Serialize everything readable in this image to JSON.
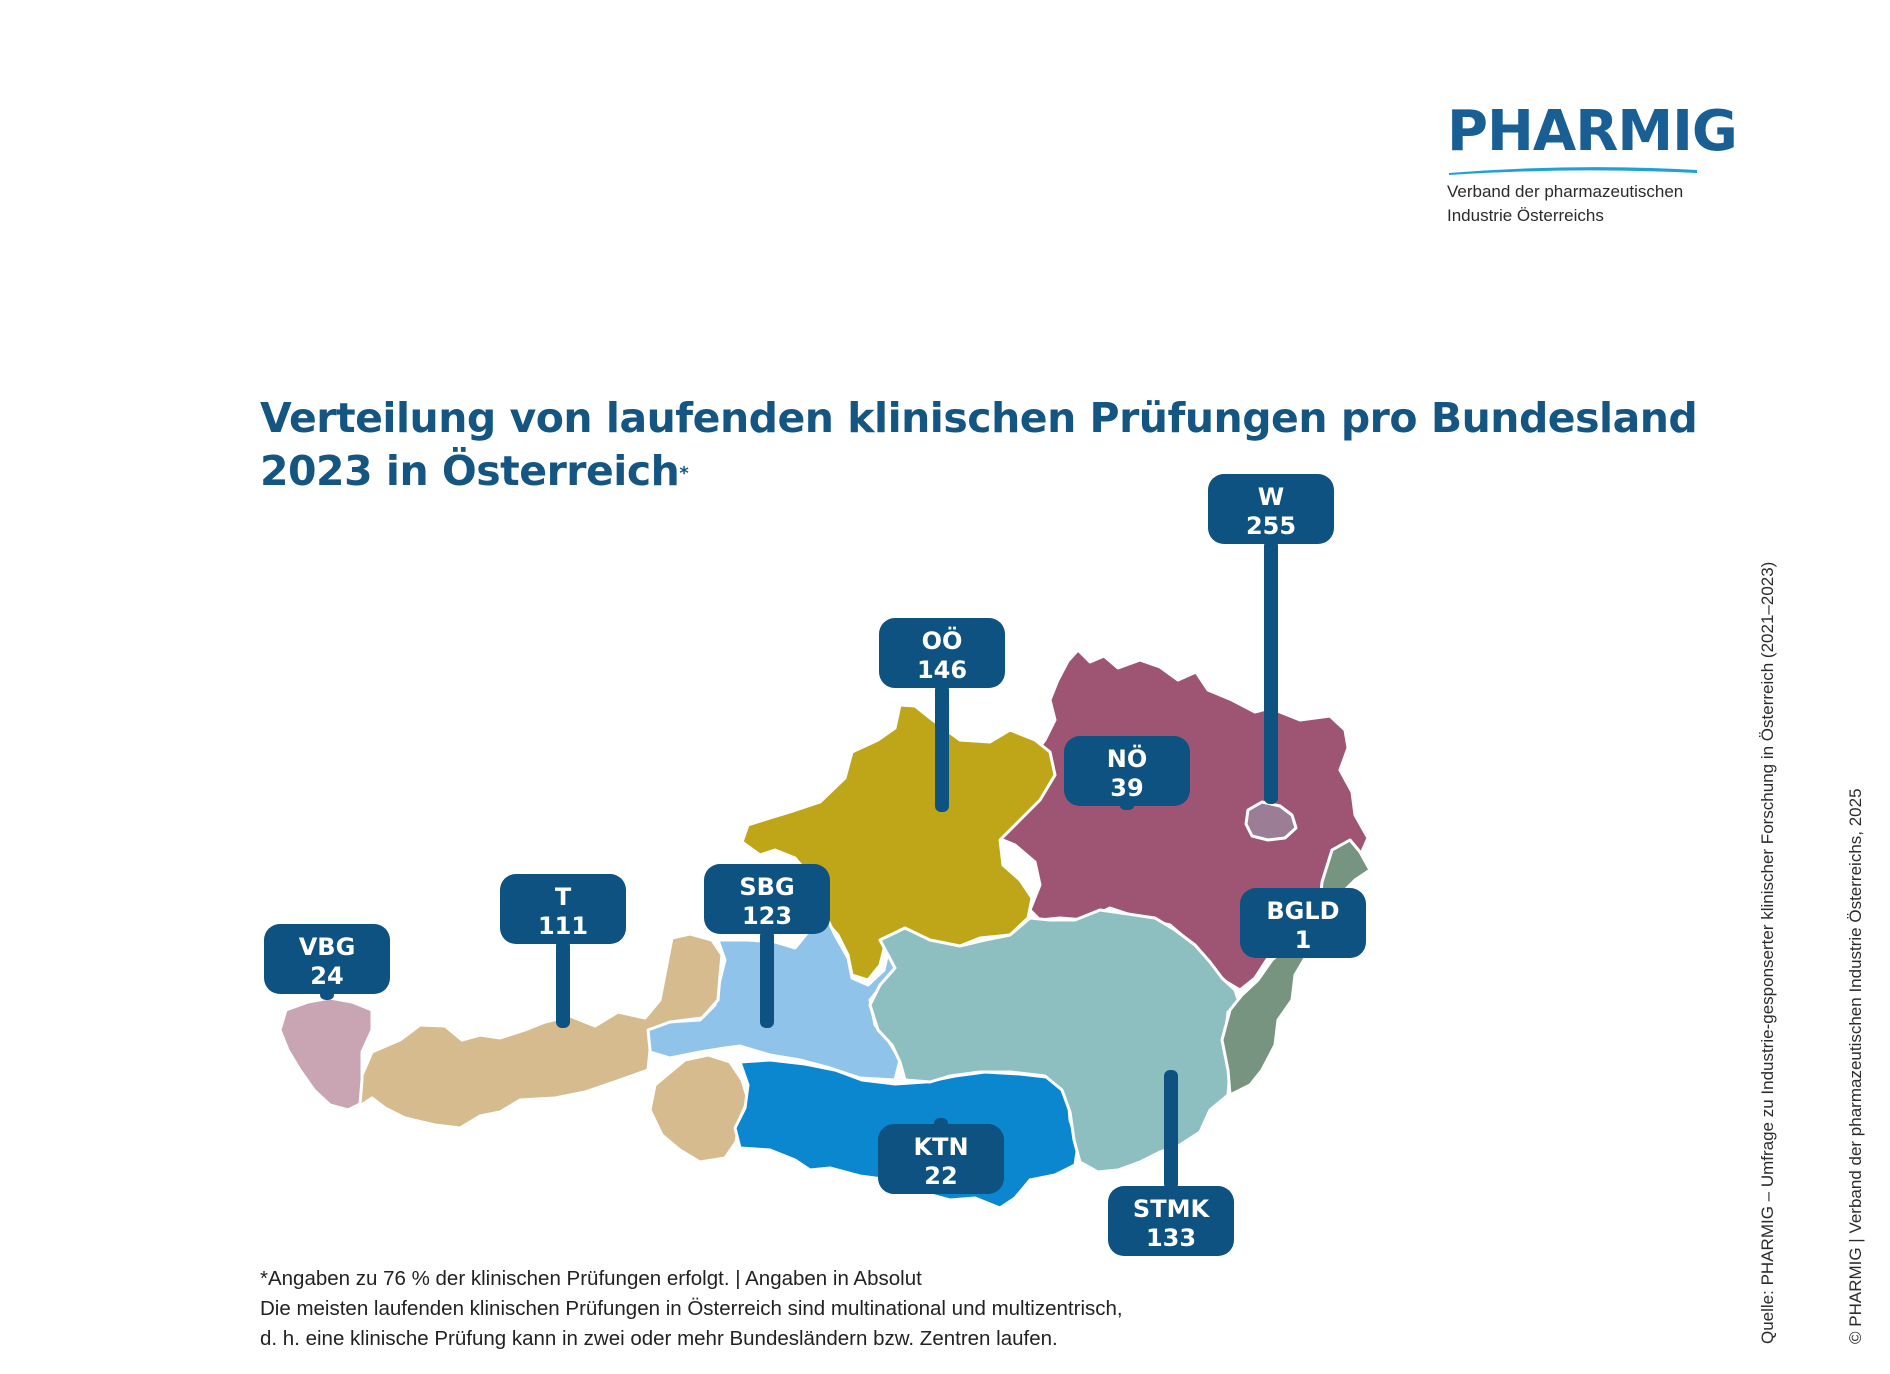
{
  "logo": {
    "wordmark": "PHARMIG",
    "subtitle_line1": "Verband der pharmazeutischen",
    "subtitle_line2": "Industrie Österreichs",
    "color": "#1a5f94"
  },
  "title": {
    "line1": "Verteilung von laufenden klinischen Prüfungen pro Bundesland",
    "line2": "2023 in Österreich",
    "marker": "*"
  },
  "map": {
    "regions": [
      {
        "key": "VBG",
        "value": "24",
        "color": "#c9a5b4"
      },
      {
        "key": "T",
        "value": "111",
        "color": "#d6bb8e"
      },
      {
        "key": "SBG",
        "value": "123",
        "color": "#8fc3ea"
      },
      {
        "key": "OÖ",
        "value": "146",
        "color": "#bea618"
      },
      {
        "key": "NÖ",
        "value": "39",
        "color": "#9d5573"
      },
      {
        "key": "W",
        "value": "255",
        "color": "#9b7e95"
      },
      {
        "key": "BGLD",
        "value": "1",
        "color": "#76947f"
      },
      {
        "key": "STMK",
        "value": "133",
        "color": "#8ebfc0"
      },
      {
        "key": "KTN",
        "value": "22",
        "color": "#0a87cf"
      }
    ],
    "label_color": "#0d5280"
  },
  "footnote": {
    "line1": "*Angaben zu 76 % der klinischen Prüfungen erfolgt. | Angaben in Absolut",
    "line2": "Die meisten laufenden klinischen Prüfungen in Österreich sind multinational und multizentrisch,",
    "line3": "d. h. eine klinische Prüfung kann in zwei oder mehr Bundesländern bzw. Zentren laufen."
  },
  "source": "Quelle: PHARMIG – Umfrage zu Industrie-gesponserter klinischer Forschung in Österreich (2021–2023)",
  "copyright": "© PHARMIG | Verband der pharmazeutischen Industrie Österreichs, 2025"
}
